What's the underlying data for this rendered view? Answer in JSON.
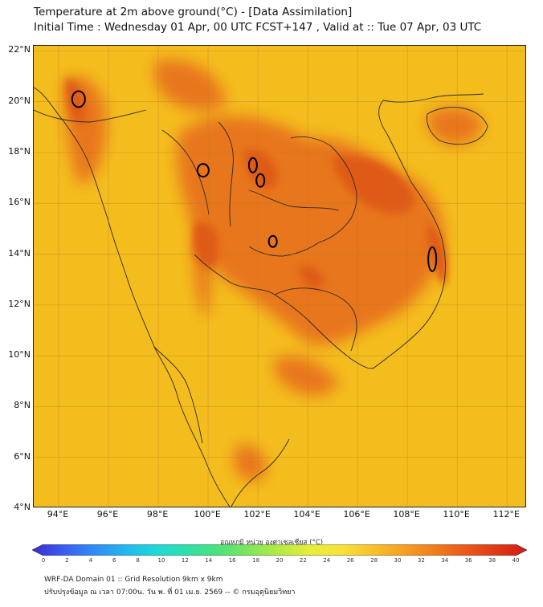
{
  "header": {
    "title_line1": "Temperature at 2m above ground(°C) - [Data Assimilation]",
    "title_line2": "Initial Time : Wednesday 01 Apr, 00 UTC FCST+147 , Valid at :: Tue 07 Apr, 03 UTC"
  },
  "map": {
    "lat_labels": [
      "22°N",
      "20°N",
      "18°N",
      "16°N",
      "14°N",
      "12°N",
      "10°N",
      "8°N",
      "6°N",
      "4°N"
    ],
    "lon_labels": [
      "94°E",
      "96°E",
      "98°E",
      "100°E",
      "102°E",
      "104°E",
      "106°E",
      "108°E",
      "110°E",
      "112°E"
    ],
    "lat_values": [
      22,
      20,
      18,
      16,
      14,
      12,
      10,
      8,
      6,
      4
    ],
    "lon_values": [
      94,
      96,
      98,
      100,
      102,
      104,
      106,
      108,
      110,
      112
    ],
    "extent": {
      "lon_min": 93.0,
      "lon_max": 112.8,
      "lat_min": 4.0,
      "lat_max": 22.2
    },
    "background_color": "#f4bd1e",
    "hot_color": "#e8761e",
    "hottest_color": "#df5a16",
    "land_outline_color": "#2a2a2a",
    "contour_color": "#000000",
    "contour_loops": [
      {
        "lon": 94.8,
        "lat": 20.1
      },
      {
        "lon": 99.8,
        "lat": 17.3
      },
      {
        "lon": 101.8,
        "lat": 17.5
      },
      {
        "lon": 102.1,
        "lat": 16.9
      },
      {
        "lon": 102.6,
        "lat": 14.5
      },
      {
        "lon": 109.0,
        "lat": 13.8
      }
    ]
  },
  "colorbar": {
    "title": "อุณหภูมิ หน่วย องศาเซลเซียส (°C)",
    "ticks": [
      "0",
      "2",
      "4",
      "6",
      "8",
      "10",
      "12",
      "14",
      "16",
      "18",
      "20",
      "22",
      "24",
      "26",
      "28",
      "30",
      "32",
      "34",
      "36",
      "38",
      "40"
    ],
    "min": 0,
    "max": 40,
    "colors": [
      "#3a2bd9",
      "#3b5cf0",
      "#2f8cf5",
      "#22b8f0",
      "#1fd8d8",
      "#2ee0a8",
      "#4be37a",
      "#7fe65a",
      "#b6ea43",
      "#e6ee3a",
      "#f7e23a",
      "#f8c22c",
      "#f6a023",
      "#f17d1d",
      "#ea5a19",
      "#e03a16",
      "#d51a14"
    ]
  },
  "footer": {
    "line1": "WRF-DA Domain 01 :: Grid Resolution 9km x 9km",
    "line2": "ปรับปรุงข้อมูล ณ เวลา 07:00น. วัน พ. ที่ 01 เม.ย. 2569 -- © กรมอุตุนิยมวิทยา"
  }
}
